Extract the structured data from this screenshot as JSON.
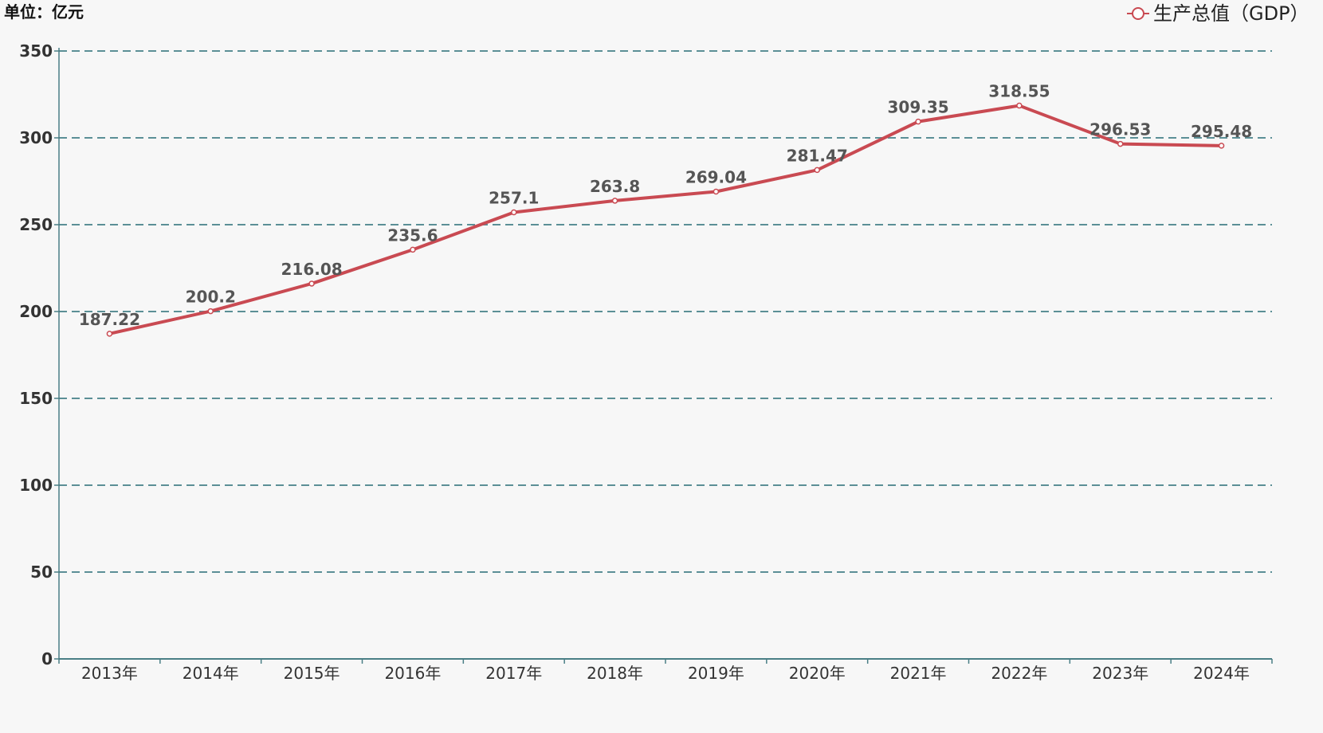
{
  "chart_data": {
    "type": "line",
    "unit_label": "单位：亿元",
    "categories": [
      "2013年",
      "2014年",
      "2015年",
      "2016年",
      "2017年",
      "2018年",
      "2019年",
      "2020年",
      "2021年",
      "2022年",
      "2023年",
      "2024年"
    ],
    "series": [
      {
        "name": "生产总值（GDP）",
        "values": [
          187.22,
          200.2,
          216.08,
          235.6,
          257.1,
          263.8,
          269.04,
          281.47,
          309.35,
          318.55,
          296.53,
          295.48
        ],
        "labels": [
          "187.22",
          "200.2",
          "216.08",
          "235.6",
          "257.1",
          "263.8",
          "269.04",
          "281.47",
          "309.35",
          "318.55",
          "296.53",
          "295.48"
        ],
        "color": "#c94a52"
      }
    ],
    "yticks": [
      "0",
      "50",
      "100",
      "150",
      "200",
      "250",
      "300",
      "350"
    ],
    "ylim": [
      0,
      350
    ],
    "grid": true,
    "legend_position": "top-right",
    "colors": {
      "grid": "#5b8f96",
      "axis": "#4a7f86",
      "background": "#f7f7f7"
    }
  }
}
